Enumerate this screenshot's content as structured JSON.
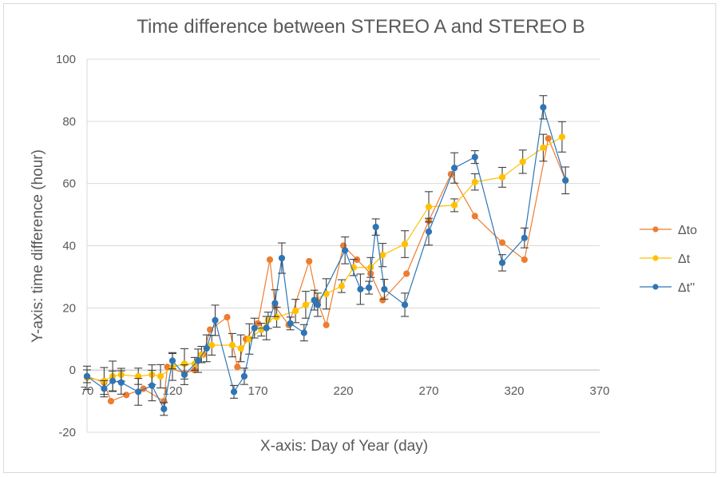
{
  "chart_data": {
    "type": "line",
    "title": "Time difference between STEREO A and STEREO B",
    "xlabel": "X-axis: Day of Year (day)",
    "ylabel": "Y-axis: time difference (hour)",
    "xlim": [
      70,
      370
    ],
    "ylim": [
      -20,
      100
    ],
    "xticks": [
      "70",
      "120",
      "170",
      "220",
      "270",
      "320",
      "370"
    ],
    "yticks": [
      "-20",
      "0",
      "20",
      "40",
      "60",
      "80",
      "100"
    ],
    "grid": "horizontal",
    "legend_position": "right",
    "series": [
      {
        "name": "Δto",
        "color": "#ED7D31",
        "error_bars": false,
        "points": [
          [
            70,
            -2
          ],
          [
            80,
            -4
          ],
          [
            84,
            -10
          ],
          [
            93,
            -8
          ],
          [
            103,
            -6
          ],
          [
            115,
            -10
          ],
          [
            117,
            1
          ],
          [
            127,
            -1
          ],
          [
            133,
            0
          ],
          [
            138,
            5
          ],
          [
            142,
            13
          ],
          [
            152,
            17
          ],
          [
            158,
            1
          ],
          [
            163,
            10
          ],
          [
            170,
            15
          ],
          [
            177,
            35.5
          ],
          [
            180,
            20.5
          ],
          [
            188,
            14.5
          ],
          [
            200,
            35
          ],
          [
            205,
            22
          ],
          [
            210,
            14.5
          ],
          [
            220,
            40
          ],
          [
            228,
            35.5
          ],
          [
            236,
            31
          ],
          [
            243,
            22.5
          ],
          [
            257,
            31
          ],
          [
            270,
            48
          ],
          [
            283,
            63
          ],
          [
            297,
            49.5
          ],
          [
            313,
            41
          ],
          [
            326,
            35.5
          ],
          [
            340,
            74.5
          ],
          [
            350,
            61
          ]
        ]
      },
      {
        "name": "Δt",
        "color": "#FFC000",
        "error_bars": true,
        "points": [
          [
            70,
            -2.5
          ],
          [
            80,
            -3.5
          ],
          [
            85,
            -2
          ],
          [
            90,
            -1.5
          ],
          [
            100,
            -2
          ],
          [
            108,
            -1.5
          ],
          [
            113,
            -2
          ],
          [
            120,
            1
          ],
          [
            127,
            2
          ],
          [
            133,
            2
          ],
          [
            137,
            5
          ],
          [
            143,
            8
          ],
          [
            155,
            8
          ],
          [
            160,
            7
          ],
          [
            165,
            10
          ],
          [
            172,
            13
          ],
          [
            176,
            16
          ],
          [
            181,
            17
          ],
          [
            192,
            19
          ],
          [
            198,
            21
          ],
          [
            210,
            24.5
          ],
          [
            219,
            27
          ],
          [
            226,
            33
          ],
          [
            236,
            33
          ],
          [
            243,
            37
          ],
          [
            256,
            40.5
          ],
          [
            270,
            52.5
          ],
          [
            285,
            53
          ],
          [
            297,
            60.5
          ],
          [
            313,
            62
          ],
          [
            325,
            67
          ],
          [
            337,
            71.5
          ],
          [
            348,
            75
          ]
        ]
      },
      {
        "name": "Δt''",
        "color": "#2E75B6",
        "error_bars": true,
        "points": [
          [
            70,
            -2
          ],
          [
            80,
            -6
          ],
          [
            85,
            -3.5
          ],
          [
            90,
            -4
          ],
          [
            100,
            -7
          ],
          [
            108,
            -5
          ],
          [
            115,
            -12.5
          ],
          [
            120,
            3
          ],
          [
            127,
            -1.5
          ],
          [
            135,
            3
          ],
          [
            140,
            7
          ],
          [
            145,
            16
          ],
          [
            156,
            -7
          ],
          [
            162,
            -2
          ],
          [
            168,
            13.5
          ],
          [
            175,
            13.5
          ],
          [
            180,
            21.5
          ],
          [
            184,
            36
          ],
          [
            189,
            15
          ],
          [
            197,
            12
          ],
          [
            203,
            22.5
          ],
          [
            205,
            21
          ],
          [
            221,
            38.5
          ],
          [
            230,
            26
          ],
          [
            235,
            26.5
          ],
          [
            239,
            46
          ],
          [
            244,
            26
          ],
          [
            256,
            21
          ],
          [
            270,
            44.5
          ],
          [
            285,
            65
          ],
          [
            297,
            68.5
          ],
          [
            313,
            34.5
          ],
          [
            326,
            42.5
          ],
          [
            337,
            84.5
          ],
          [
            350,
            61
          ]
        ]
      }
    ]
  }
}
